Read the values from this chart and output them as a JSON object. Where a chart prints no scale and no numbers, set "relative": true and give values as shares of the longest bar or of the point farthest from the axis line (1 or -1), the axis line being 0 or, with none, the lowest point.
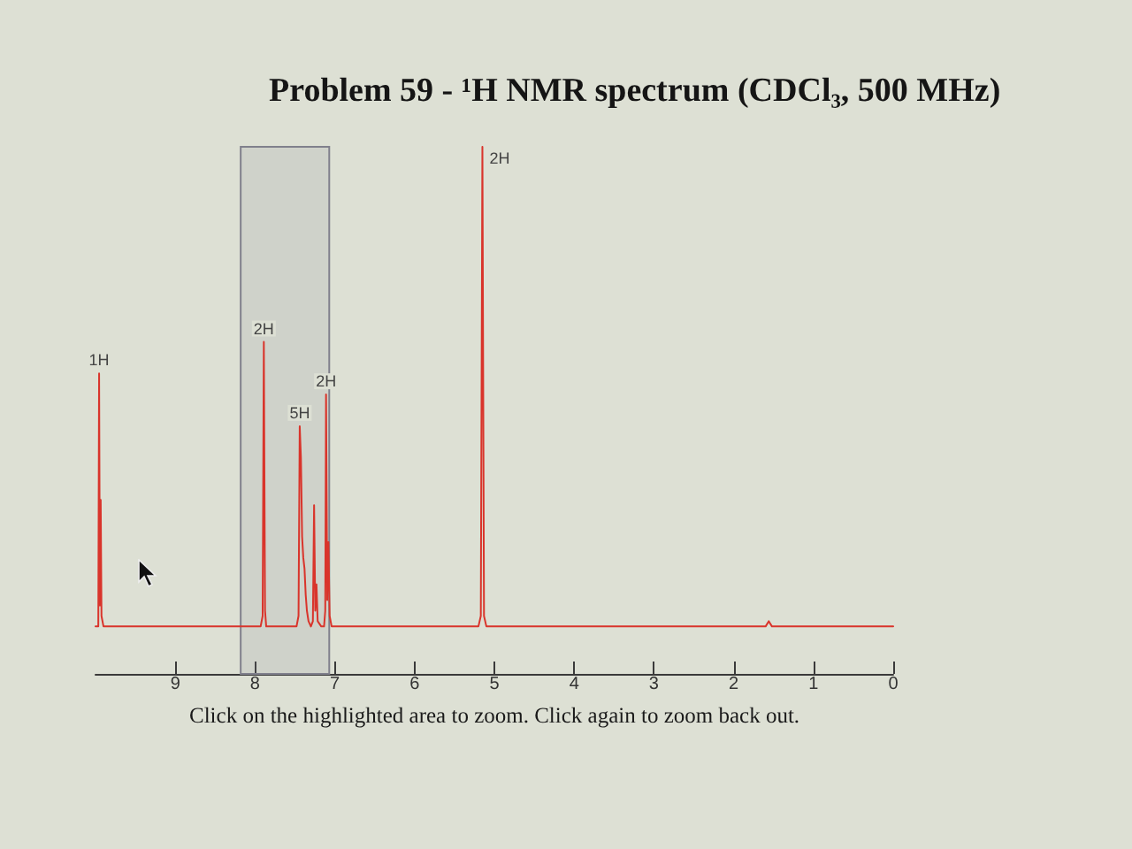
{
  "chart_data": {
    "type": "line",
    "title": "Problem 59 - ¹H NMR spectrum (CDCl₃, 500 MHz)",
    "relative": true,
    "marker": "none",
    "xlim": [
      10,
      0
    ],
    "xticks": [
      9,
      8,
      7,
      6,
      5,
      4,
      3,
      2,
      1,
      0
    ],
    "series": [
      {
        "color": "#d9342b",
        "x": [
          10,
          9.965,
          9.955,
          9.945,
          9.935,
          9.925,
          9.9,
          7.93,
          7.905,
          7.89,
          7.875,
          7.86,
          7.48,
          7.455,
          7.44,
          7.425,
          7.41,
          7.395,
          7.38,
          7.365,
          7.35,
          7.33,
          7.3,
          7.275,
          7.26,
          7.245,
          7.23,
          7.215,
          7.17,
          7.135,
          7.12,
          7.11,
          7.095,
          7.08,
          7.065,
          7.04,
          5.2,
          5.17,
          5.15,
          5.13,
          5.1,
          1.6,
          1.56,
          1.52,
          0
        ],
        "values": [
          0.09,
          0.09,
          0.57,
          0.13,
          0.33,
          0.11,
          0.09,
          0.09,
          0.11,
          0.63,
          0.12,
          0.09,
          0.09,
          0.11,
          0.47,
          0.41,
          0.26,
          0.22,
          0.2,
          0.15,
          0.12,
          0.1,
          0.09,
          0.1,
          0.32,
          0.12,
          0.17,
          0.1,
          0.09,
          0.09,
          0.12,
          0.53,
          0.14,
          0.25,
          0.11,
          0.09,
          0.09,
          0.11,
          1,
          0.11,
          0.09,
          0.09,
          0.1,
          0.09,
          0.09
        ]
      }
    ],
    "bands": [
      {
        "axis": "x",
        "from": 8.18,
        "to": 7.07,
        "color": "#80808c"
      }
    ],
    "annotations": [
      {
        "text": "1H",
        "x": 9.955,
        "y": 0.57
      },
      {
        "text": "2H",
        "x": 7.89,
        "y": 0.63
      },
      {
        "text": "5H",
        "x": 7.44,
        "y": 0.47
      },
      {
        "text": "2H",
        "x": 7.11,
        "y": 0.53
      },
      {
        "text": "2H",
        "x": 5.15,
        "y": 1
      },
      "Click on the highlighted area to zoom. Click again to zoom back out."
    ]
  }
}
